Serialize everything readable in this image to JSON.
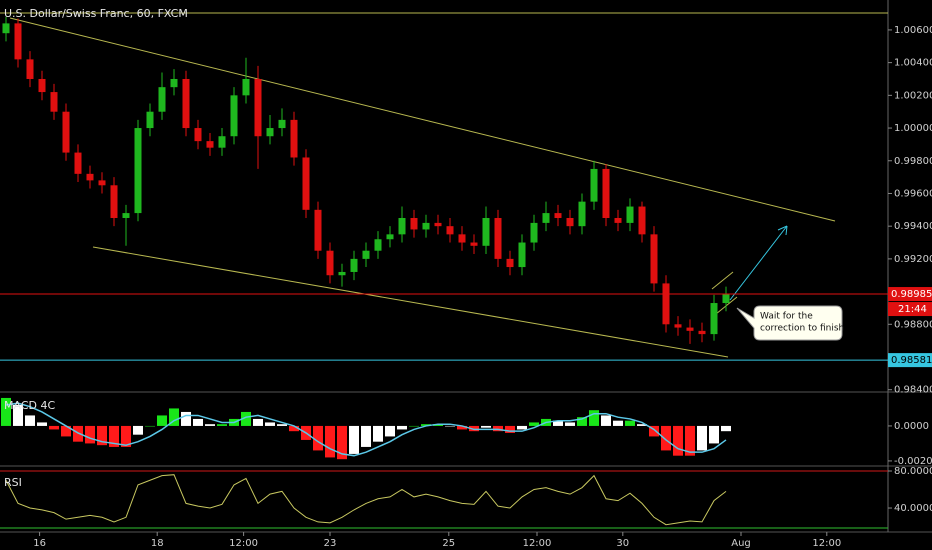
{
  "chart_data": [
    {
      "type": "candlestick",
      "title": "U.S. Dollar/Swiss Franc, 60, FXCM",
      "xlim": [
        -0.5,
        73.5
      ],
      "ylim": [
        0.98386,
        1.00783
      ],
      "yticks": [
        {
          "value": 1.006,
          "label": "1.00600"
        },
        {
          "value": 1.004,
          "label": "1.00400"
        },
        {
          "value": 1.002,
          "label": "1.00200"
        },
        {
          "value": 1.0,
          "label": "1.00000"
        },
        {
          "value": 0.998,
          "label": "0.99800"
        },
        {
          "value": 0.996,
          "label": "0.99600"
        },
        {
          "value": 0.994,
          "label": "0.99400"
        },
        {
          "value": 0.992,
          "label": "0.99200"
        },
        {
          "value": 0.988,
          "label": "0.98800"
        },
        {
          "value": 0.984,
          "label": "0.98400"
        }
      ],
      "up_color": "#1fb81f",
      "down_color": "#e01010",
      "open": [
        1.0058,
        1.0064,
        1.0042,
        1.003,
        1.0022,
        1.001,
        0.9985,
        0.9972,
        0.9968,
        0.9965,
        0.9945,
        0.9948,
        1.0,
        1.001,
        1.0025,
        1.003,
        1.0,
        0.9992,
        0.9988,
        0.9995,
        1.002,
        1.003,
        0.9995,
        1.0,
        1.0005,
        0.9982,
        0.995,
        0.9925,
        0.991,
        0.9912,
        0.992,
        0.9925,
        0.9932,
        0.9935,
        0.9945,
        0.9938,
        0.9942,
        0.994,
        0.9935,
        0.993,
        0.9928,
        0.9945,
        0.992,
        0.9915,
        0.993,
        0.9942,
        0.9948,
        0.9945,
        0.994,
        0.9955,
        0.9975,
        0.9945,
        0.9942,
        0.9952,
        0.9935,
        0.9905,
        0.988,
        0.9878,
        0.9876,
        0.9874,
        0.9893
      ],
      "high": [
        1.0068,
        1.0067,
        1.0047,
        1.0035,
        1.0027,
        1.0015,
        0.999,
        0.9977,
        0.9973,
        0.997,
        0.9953,
        1.0005,
        1.0015,
        1.0034,
        1.0036,
        1.0035,
        1.0005,
        0.9997,
        1.0,
        1.0025,
        1.0043,
        1.0038,
        1.0008,
        1.0012,
        1.001,
        0.9987,
        0.9955,
        0.993,
        0.9917,
        0.9925,
        0.993,
        0.9937,
        0.994,
        0.9952,
        0.995,
        0.9947,
        0.9947,
        0.9945,
        0.994,
        0.9935,
        0.9952,
        0.995,
        0.9925,
        0.9935,
        0.9947,
        0.9955,
        0.9953,
        0.995,
        0.996,
        0.998,
        0.9978,
        0.995,
        0.9957,
        0.9955,
        0.994,
        0.991,
        0.9885,
        0.9883,
        0.9881,
        0.9898,
        0.9903
      ],
      "low": [
        1.0053,
        1.0037,
        1.0025,
        1.0017,
        1.0005,
        0.998,
        0.9967,
        0.9963,
        0.996,
        0.994,
        0.9928,
        0.9943,
        0.9995,
        1.0005,
        1.002,
        0.9995,
        0.9987,
        0.9983,
        0.9983,
        0.999,
        1.0015,
        0.9975,
        0.999,
        0.9995,
        0.9977,
        0.9945,
        0.992,
        0.9905,
        0.9903,
        0.9907,
        0.9915,
        0.992,
        0.9927,
        0.993,
        0.9933,
        0.9933,
        0.9935,
        0.993,
        0.9925,
        0.9923,
        0.9923,
        0.9915,
        0.991,
        0.991,
        0.9925,
        0.9937,
        0.994,
        0.9935,
        0.9935,
        0.995,
        0.994,
        0.9937,
        0.9937,
        0.993,
        0.99,
        0.9875,
        0.9873,
        0.9868,
        0.9869,
        0.987,
        0.9888
      ],
      "close": [
        1.0064,
        1.0042,
        1.003,
        1.0022,
        1.001,
        0.9985,
        0.9972,
        0.9968,
        0.9965,
        0.9945,
        0.9948,
        1.0,
        1.001,
        1.0025,
        1.003,
        1.0,
        0.9992,
        0.9988,
        0.9995,
        1.002,
        1.003,
        0.9995,
        1.0,
        1.0005,
        0.9982,
        0.995,
        0.9925,
        0.991,
        0.9912,
        0.992,
        0.9925,
        0.9932,
        0.9935,
        0.9945,
        0.9938,
        0.9942,
        0.994,
        0.9935,
        0.993,
        0.9928,
        0.9945,
        0.992,
        0.9915,
        0.993,
        0.9942,
        0.9948,
        0.9945,
        0.994,
        0.9955,
        0.9975,
        0.9945,
        0.9942,
        0.9952,
        0.9935,
        0.9905,
        0.988,
        0.9878,
        0.9876,
        0.9874,
        0.9893,
        0.98985
      ],
      "levels": [
        {
          "value": 0.98985,
          "color": "#e01010",
          "countdown": "21:44"
        },
        {
          "value": 0.98581,
          "color": "#36c6e0"
        }
      ],
      "annotation": [
        "Wait for the",
        "correction to finish"
      ]
    },
    {
      "type": "macd",
      "title": "MACD 4C",
      "ylim": [
        -0.00229,
        0.00194
      ],
      "yticks": [
        {
          "value": 0,
          "label": "0.0000"
        },
        {
          "value": -0.002,
          "label": "-0.0020"
        }
      ],
      "colors": [
        "#19e619",
        "#ffffff",
        "#ff1a1a",
        "#ffffff"
      ],
      "signal_color": "#5bc8e8",
      "histogram": [
        0.0016,
        0.0012,
        0.0006,
        0.0002,
        -0.0002,
        -0.0006,
        -0.0009,
        -0.001,
        -0.0011,
        -0.0012,
        -0.0012,
        -0.0005,
        0.0,
        0.0006,
        0.001,
        0.0008,
        0.0004,
        0.0001,
        0.0001,
        0.0004,
        0.0008,
        0.0004,
        0.0002,
        0.0001,
        -0.0003,
        -0.0008,
        -0.0014,
        -0.0018,
        -0.0019,
        -0.0016,
        -0.0012,
        -0.0009,
        -0.0006,
        -0.0002,
        0.0,
        0.0001,
        0.0001,
        0.0,
        -0.0002,
        -0.0003,
        -0.0001,
        -0.0003,
        -0.0004,
        -0.0002,
        0.0002,
        0.0004,
        0.0003,
        0.0002,
        0.0005,
        0.0009,
        0.0006,
        0.0003,
        0.0003,
        0.0001,
        -0.0006,
        -0.0014,
        -0.0017,
        -0.0017,
        -0.0014,
        -0.001,
        -0.0003
      ],
      "signal": [
        0.0012,
        0.0013,
        0.0011,
        0.0008,
        0.0004,
        0.0,
        -0.0004,
        -0.0007,
        -0.0009,
        -0.001,
        -0.0011,
        -0.0009,
        -0.0006,
        -0.0002,
        0.0003,
        0.0006,
        0.0006,
        0.0004,
        0.0002,
        0.0002,
        0.0005,
        0.0006,
        0.0004,
        0.0002,
        0.0,
        -0.0004,
        -0.0009,
        -0.0013,
        -0.0016,
        -0.0017,
        -0.0015,
        -0.0012,
        -0.0009,
        -0.0005,
        -0.0002,
        0.0,
        0.0001,
        0.0001,
        0.0,
        -0.0002,
        -0.0002,
        -0.0002,
        -0.0003,
        -0.0003,
        -0.0001,
        0.0002,
        0.0003,
        0.0003,
        0.0004,
        0.0007,
        0.0007,
        0.0005,
        0.0004,
        0.0002,
        -0.0002,
        -0.0008,
        -0.0013,
        -0.0015,
        -0.0015,
        -0.0013,
        -0.0008
      ]
    },
    {
      "type": "line",
      "title": "RSI",
      "color": "#c8c860",
      "ylim": [
        14.1,
        85.4
      ],
      "yticks": [
        {
          "value": 80,
          "label": "80.0000"
        },
        {
          "value": 40,
          "label": "40.0000"
        }
      ],
      "xticks": [
        {
          "value": 2.8,
          "label": "16"
        },
        {
          "value": 12.6,
          "label": "18"
        },
        {
          "value": 19.8,
          "label": "12:00"
        },
        {
          "value": 27,
          "label": "23"
        },
        {
          "value": 36.9,
          "label": "25"
        },
        {
          "value": 44.25,
          "label": "12:00"
        },
        {
          "value": 51.4,
          "label": "30"
        },
        {
          "value": 61.25,
          "label": "Aug"
        },
        {
          "value": 68.4,
          "label": "12:00"
        }
      ],
      "values": [
        70,
        45,
        40,
        38,
        35,
        28,
        30,
        32,
        30,
        25,
        30,
        65,
        70,
        75,
        76,
        45,
        42,
        40,
        44,
        65,
        72,
        45,
        55,
        58,
        40,
        30,
        25,
        24,
        30,
        38,
        45,
        50,
        52,
        60,
        52,
        55,
        52,
        48,
        45,
        44,
        58,
        42,
        40,
        52,
        60,
        62,
        58,
        55,
        62,
        75,
        50,
        48,
        56,
        45,
        30,
        22,
        24,
        26,
        25,
        48,
        58
      ]
    }
  ]
}
